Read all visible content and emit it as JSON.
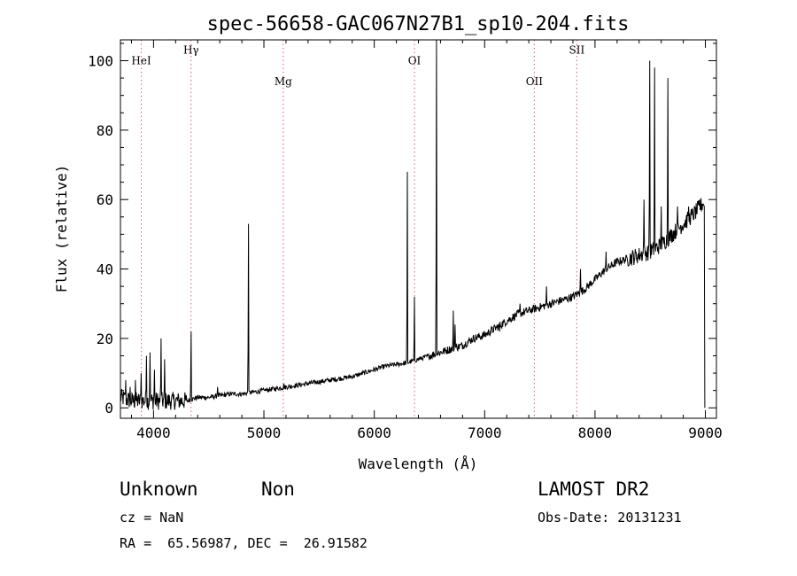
{
  "chart_data": {
    "type": "line",
    "title": "spec-56658-GAC067N27B1_sp10-204.fits",
    "xlabel": "Wavelength (Å)",
    "ylabel": "Flux (relative)",
    "xlim": [
      3700,
      9100
    ],
    "ylim": [
      -3,
      106
    ],
    "xticks": [
      4000,
      5000,
      6000,
      7000,
      8000,
      9000
    ],
    "yticks": [
      0,
      20,
      40,
      60,
      80,
      100
    ],
    "grid": false,
    "legend": "none",
    "line_color": "#000000",
    "marker_color": "#e06060",
    "line_markers": [
      {
        "label": "HeI",
        "x": 3889,
        "label_y": 99
      },
      {
        "label": "Hγ",
        "x": 4340,
        "label_y": 102
      },
      {
        "label": "Mg",
        "x": 5175,
        "label_y": 93
      },
      {
        "label": "OI",
        "x": 6364,
        "label_y": 99
      },
      {
        "label": "OII",
        "x": 7450,
        "label_y": 93
      },
      {
        "label": "SII",
        "x": 7835,
        "label_y": 102
      }
    ],
    "continuum": [
      [
        3700,
        3
      ],
      [
        3800,
        2
      ],
      [
        3900,
        2
      ],
      [
        4000,
        2
      ],
      [
        4100,
        2
      ],
      [
        4200,
        2
      ],
      [
        4300,
        2
      ],
      [
        4400,
        3
      ],
      [
        4500,
        3
      ],
      [
        4600,
        3.5
      ],
      [
        4700,
        4
      ],
      [
        4800,
        4
      ],
      [
        4900,
        4.5
      ],
      [
        5000,
        5
      ],
      [
        5100,
        5.5
      ],
      [
        5200,
        6
      ],
      [
        5300,
        6.5
      ],
      [
        5400,
        7
      ],
      [
        5500,
        7.5
      ],
      [
        5600,
        8
      ],
      [
        5700,
        8.5
      ],
      [
        5800,
        9
      ],
      [
        5900,
        10
      ],
      [
        6000,
        11
      ],
      [
        6100,
        12
      ],
      [
        6200,
        12.5
      ],
      [
        6300,
        13
      ],
      [
        6400,
        14
      ],
      [
        6500,
        15
      ],
      [
        6600,
        16
      ],
      [
        6700,
        17
      ],
      [
        6800,
        18
      ],
      [
        6900,
        20
      ],
      [
        7000,
        21
      ],
      [
        7100,
        23
      ],
      [
        7200,
        25
      ],
      [
        7300,
        27
      ],
      [
        7400,
        28
      ],
      [
        7500,
        29
      ],
      [
        7600,
        30
      ],
      [
        7700,
        31
      ],
      [
        7800,
        32
      ],
      [
        7900,
        34
      ],
      [
        8000,
        37
      ],
      [
        8100,
        40
      ],
      [
        8200,
        42
      ],
      [
        8300,
        43
      ],
      [
        8400,
        44
      ],
      [
        8500,
        45
      ],
      [
        8600,
        47
      ],
      [
        8700,
        50
      ],
      [
        8800,
        53
      ],
      [
        8900,
        56
      ],
      [
        8980,
        59
      ]
    ],
    "emission_lines": [
      [
        3750,
        8
      ],
      [
        3790,
        6
      ],
      [
        3835,
        8
      ],
      [
        3889,
        10
      ],
      [
        3935,
        15
      ],
      [
        3970,
        16
      ],
      [
        4010,
        11
      ],
      [
        4070,
        20
      ],
      [
        4100,
        14
      ],
      [
        4340,
        22
      ],
      [
        4580,
        6
      ],
      [
        4861,
        53
      ],
      [
        5010,
        5
      ],
      [
        5180,
        7
      ],
      [
        5880,
        10
      ],
      [
        6300,
        68
      ],
      [
        6364,
        32
      ],
      [
        6563,
        106
      ],
      [
        6717,
        28
      ],
      [
        6731,
        24
      ],
      [
        7135,
        22
      ],
      [
        7320,
        30
      ],
      [
        7560,
        35
      ],
      [
        7870,
        40
      ],
      [
        8100,
        45
      ],
      [
        8446,
        60
      ],
      [
        8498,
        100
      ],
      [
        8542,
        98
      ],
      [
        8600,
        58
      ],
      [
        8662,
        95
      ],
      [
        8750,
        58
      ],
      [
        8850,
        58
      ],
      [
        8950,
        60
      ]
    ]
  },
  "info": {
    "object_class": "Unknown",
    "subclass": "Non",
    "survey": "LAMOST DR2",
    "cz": "cz = NaN",
    "obs_date": "Obs-Date: 20131231",
    "coords": "RA =  65.56987, DEC =  26.91582"
  }
}
